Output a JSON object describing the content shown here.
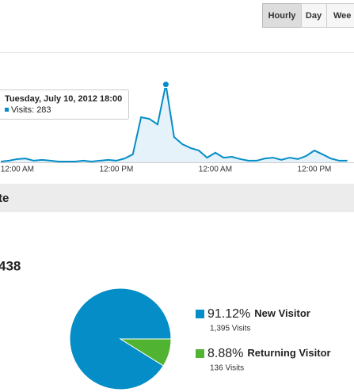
{
  "buttons": [
    "Hourly",
    "Day",
    "Wee"
  ],
  "section_title": "te",
  "total": "438",
  "chart_data": [
    {
      "type": "line",
      "categories": [
        null,
        null,
        "12:00 AM",
        null,
        null,
        null,
        null,
        null,
        null,
        null,
        null,
        null,
        null,
        null,
        "12:00 PM",
        null,
        null,
        null,
        null,
        null,
        null,
        null,
        null,
        null,
        null,
        null,
        "12:00 AM",
        null,
        null,
        null,
        null,
        null,
        null,
        null,
        null,
        null,
        null,
        null,
        "12:00 PM",
        null,
        null,
        null,
        null
      ],
      "series": [
        {
          "name": "Visits",
          "color": "#058dc7",
          "values": [
            3,
            6,
            12,
            14,
            6,
            9,
            6,
            3,
            3,
            3,
            6,
            3,
            6,
            9,
            6,
            14,
            29,
            164,
            158,
            138,
            283,
            92,
            66,
            52,
            43,
            17,
            35,
            17,
            20,
            12,
            6,
            6,
            14,
            17,
            9,
            17,
            12,
            23,
            43,
            29,
            14,
            6,
            6
          ]
        }
      ],
      "ylim": [
        0,
        400
      ],
      "tooltip": {
        "index": 20,
        "title": "Tuesday, July 10, 2012 18:00",
        "label": "Visits: 283"
      }
    },
    {
      "type": "pie",
      "categories": [
        "New Visitor",
        "Returning Visitor"
      ],
      "values": [
        91.12,
        8.88
      ],
      "value_labels": [
        "91.12%",
        "8.88%"
      ],
      "colors": [
        "#058dc7",
        "#50b432"
      ],
      "visits": [
        1395,
        136
      ],
      "visits_labels": [
        "1,395 Visits",
        "136 Visits"
      ]
    }
  ]
}
